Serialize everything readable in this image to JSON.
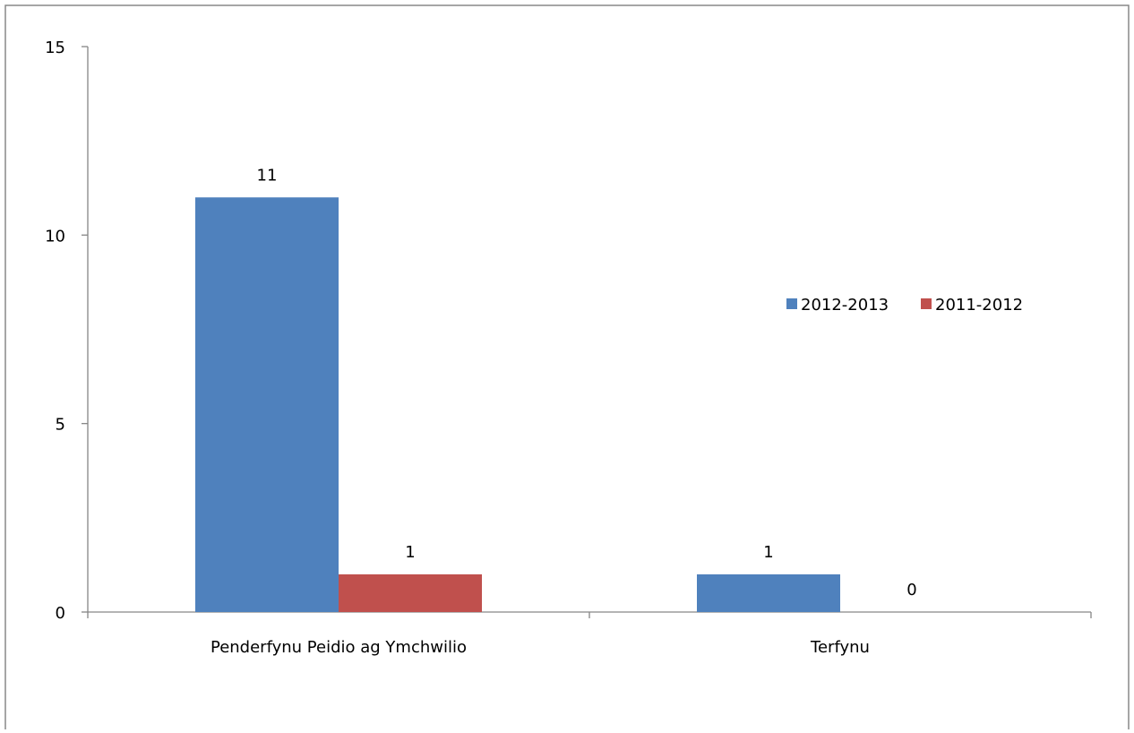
{
  "chart_data": {
    "type": "bar",
    "categories": [
      "Penderfynu Peidio ag Ymchwilio",
      "Terfynu"
    ],
    "series": [
      {
        "name": "2012-2013",
        "values": [
          11,
          1
        ],
        "color": "#4f81bd"
      },
      {
        "name": "2011-2012",
        "values": [
          1,
          0
        ],
        "color": "#c0504d"
      }
    ],
    "data_labels": [
      [
        "11",
        "1"
      ],
      [
        "1",
        "0"
      ]
    ],
    "yticks": [
      0,
      5,
      10,
      15
    ],
    "ytick_labels": [
      "0",
      "5",
      "10",
      "15"
    ],
    "ylim": [
      0,
      15
    ],
    "title": "",
    "xlabel": "",
    "ylabel": "",
    "grid": false,
    "legend_position": "right"
  }
}
